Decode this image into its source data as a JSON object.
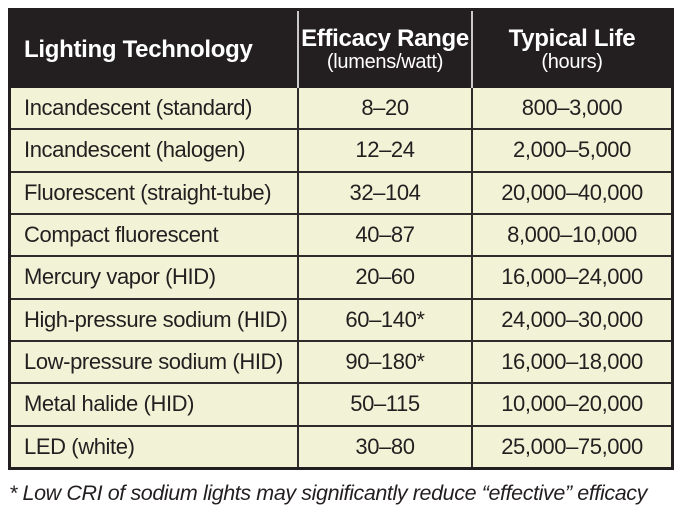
{
  "table": {
    "header": {
      "col1_title": "Lighting Technology",
      "col2_title": "Efficacy Range",
      "col2_sub": "(lumens/watt)",
      "col3_title": "Typical Life",
      "col3_sub": "(hours)"
    },
    "rows": [
      {
        "technology": "Incandescent (standard)",
        "efficacy": "8–20",
        "life": "800–3,000"
      },
      {
        "technology": "Incandescent (halogen)",
        "efficacy": "12–24",
        "life": "2,000–5,000"
      },
      {
        "technology": "Fluorescent (straight-tube)",
        "efficacy": "32–104",
        "life": "20,000–40,000"
      },
      {
        "technology": "Compact fluorescent",
        "efficacy": "40–87",
        "life": "8,000–10,000"
      },
      {
        "technology": "Mercury vapor (HID)",
        "efficacy": "20–60",
        "life": "16,000–24,000"
      },
      {
        "technology": "High-pressure sodium (HID)",
        "efficacy": "60–140*",
        "life": "24,000–30,000"
      },
      {
        "technology": "Low-pressure sodium (HID)",
        "efficacy": "90–180*",
        "life": "16,000–18,000"
      },
      {
        "technology": "Metal halide (HID)",
        "efficacy": "50–115",
        "life": "10,000–20,000"
      },
      {
        "technology": "LED (white)",
        "efficacy": "30–80",
        "life": "25,000–75,000"
      }
    ],
    "footnote": "* Low CRI of sodium lights may significantly reduce “effective” efficacy"
  },
  "chart_data": {
    "type": "table",
    "title": "",
    "columns": [
      "Lighting Technology",
      "Efficacy Range (lumens/watt)",
      "Typical Life (hours)"
    ],
    "rows": [
      [
        "Incandescent (standard)",
        "8–20",
        "800–3,000"
      ],
      [
        "Incandescent (halogen)",
        "12–24",
        "2,000–5,000"
      ],
      [
        "Fluorescent (straight-tube)",
        "32–104",
        "20,000–40,000"
      ],
      [
        "Compact fluorescent",
        "40–87",
        "8,000–10,000"
      ],
      [
        "Mercury vapor (HID)",
        "20–60",
        "16,000–24,000"
      ],
      [
        "High-pressure sodium (HID)",
        "60–140*",
        "24,000–30,000"
      ],
      [
        "Low-pressure sodium (HID)",
        "90–180*",
        "16,000–18,000"
      ],
      [
        "Metal halide (HID)",
        "50–115",
        "10,000–20,000"
      ],
      [
        "LED (white)",
        "30–80",
        "25,000–75,000"
      ]
    ],
    "footnote": "* Low CRI of sodium lights may significantly reduce “effective” efficacy"
  },
  "colors": {
    "header_bg": "#231f20",
    "header_text": "#ffffff",
    "row_bg": "#f2f3d6",
    "grid_line": "#2e2c2a",
    "header_divider": "#c9c9c7",
    "body_text": "#231f20",
    "page_bg": "#ffffff"
  }
}
